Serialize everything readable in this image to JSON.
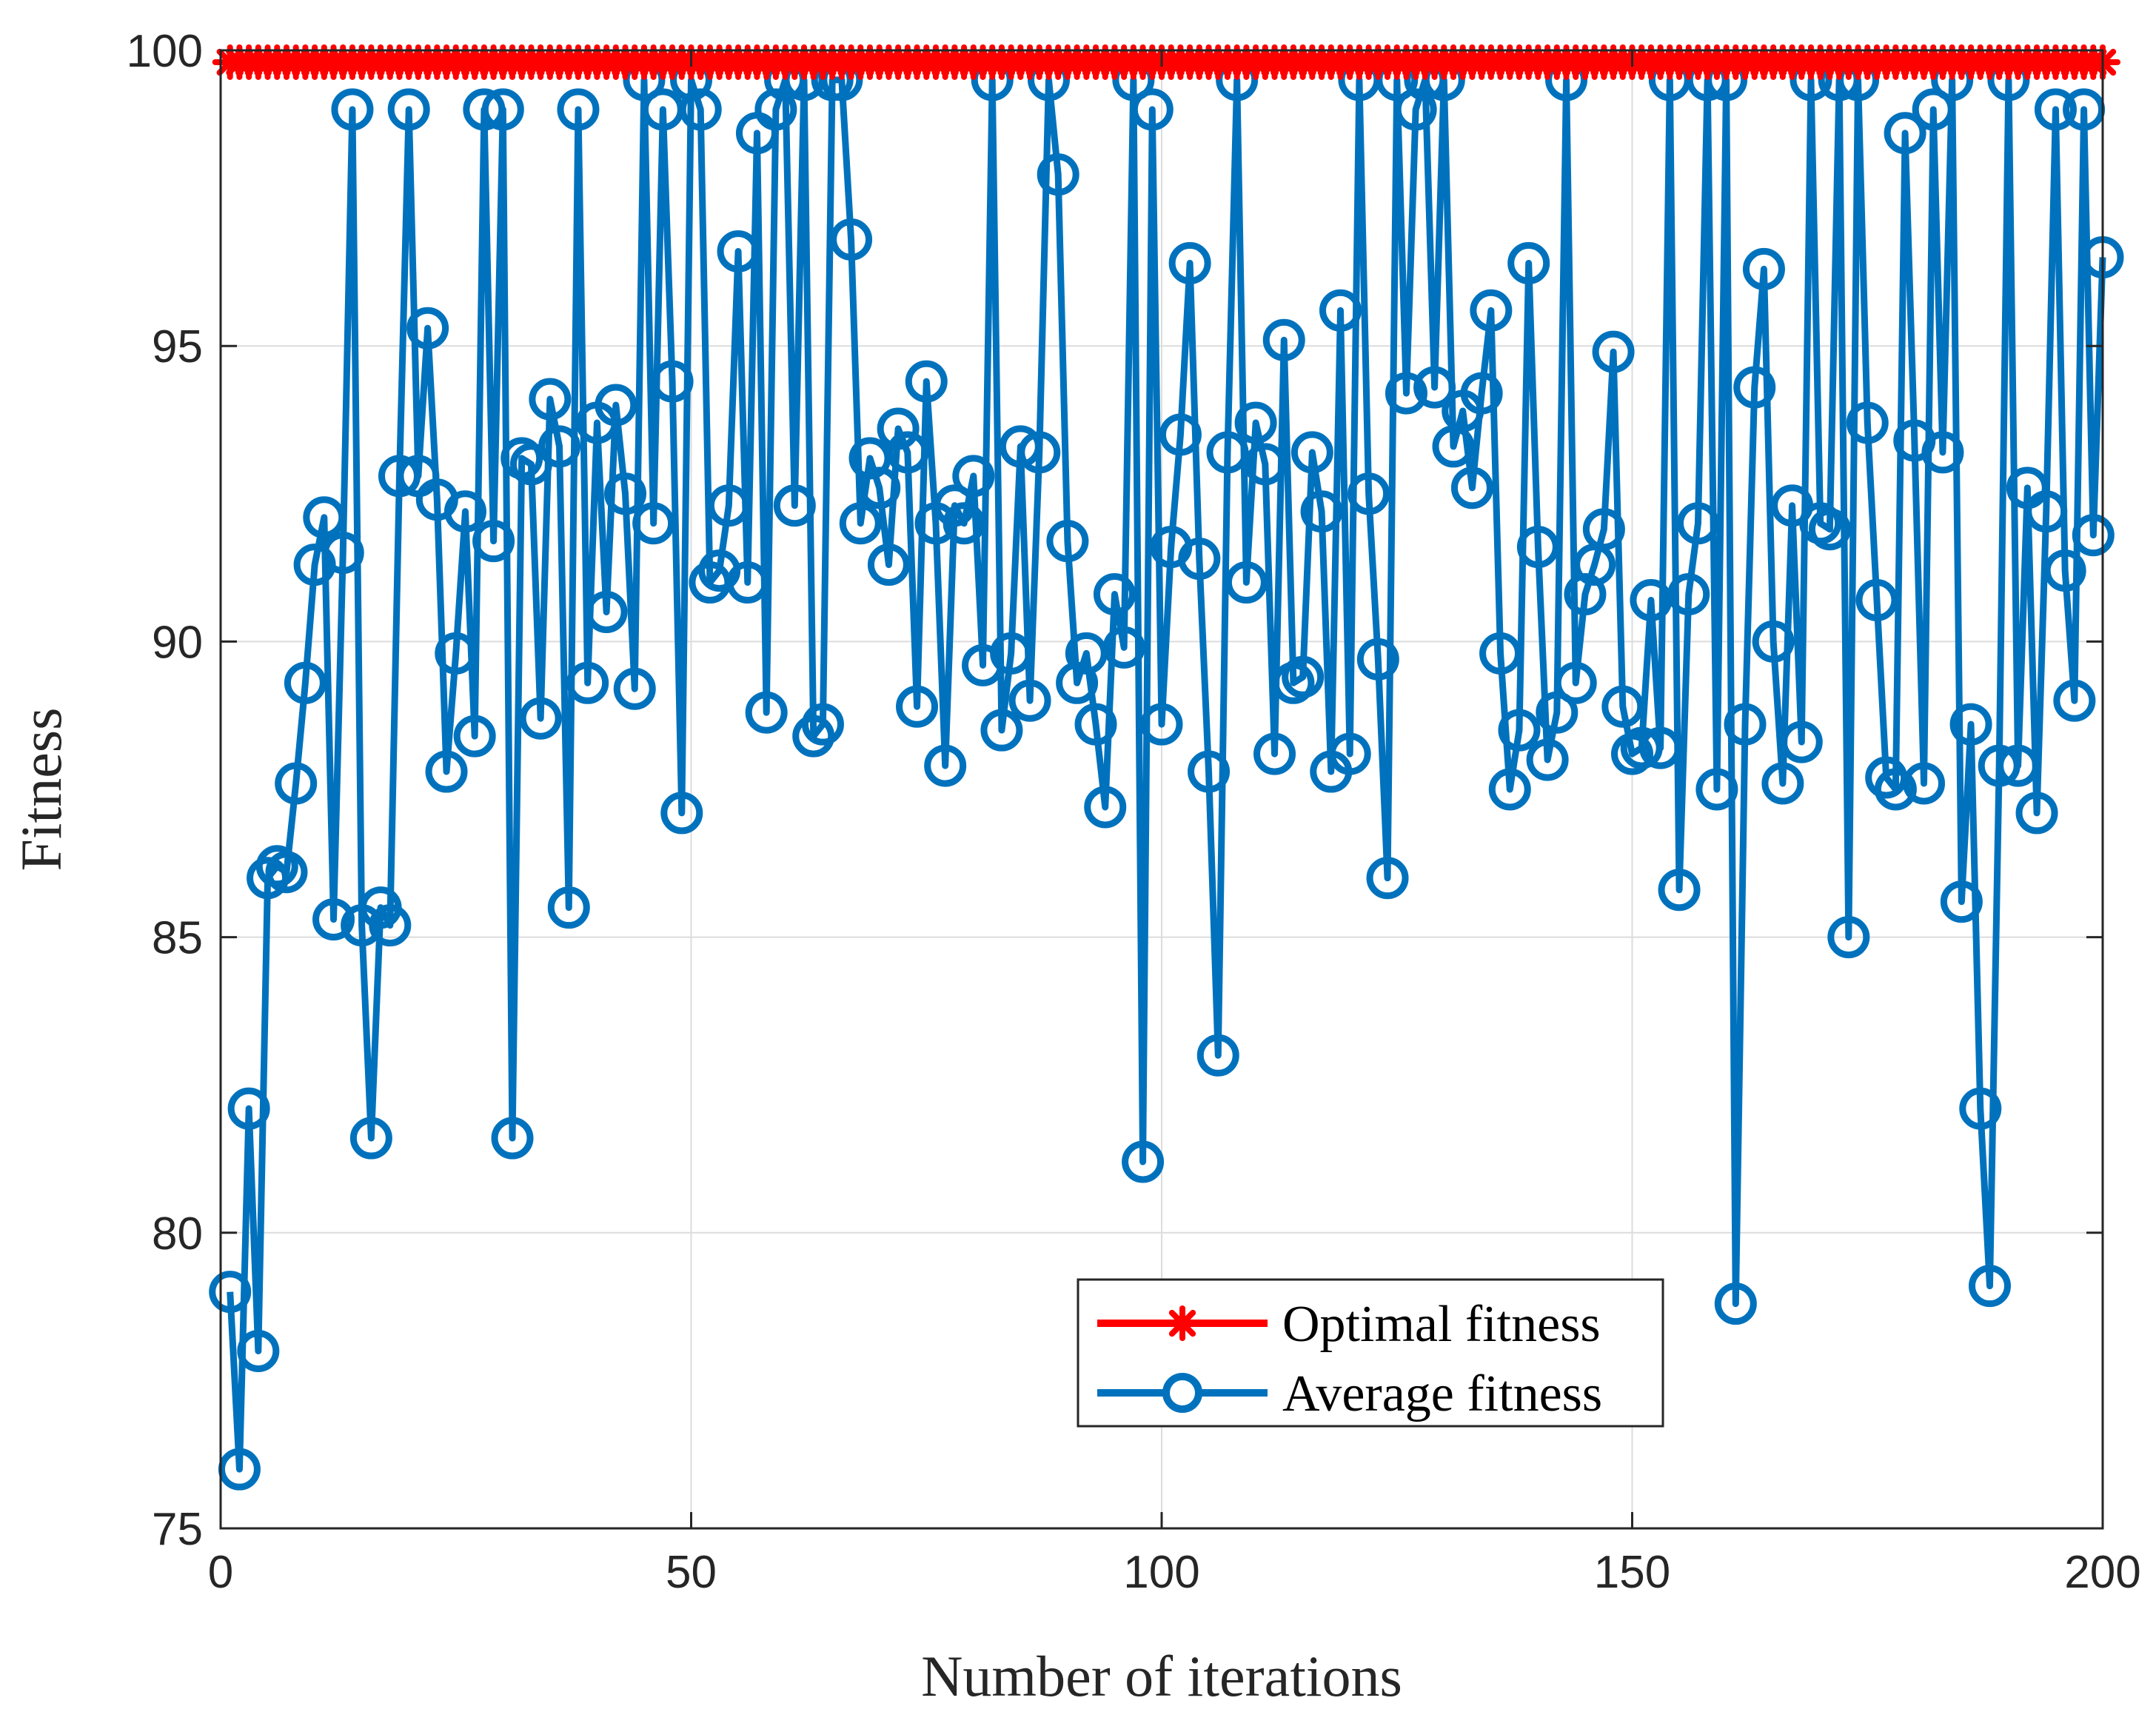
{
  "chart_data": {
    "type": "line",
    "title": "",
    "xlabel": "Number of iterations",
    "ylabel": "Fitness",
    "xlim": [
      0,
      200
    ],
    "ylim": [
      75,
      100
    ],
    "xticks": [
      0,
      50,
      100,
      150,
      200
    ],
    "yticks": [
      75,
      80,
      85,
      90,
      95,
      100
    ],
    "grid": true,
    "legend_position": "bottom-center",
    "series": [
      {
        "name": "Optimal fitness",
        "color": "#ff0000",
        "marker": "asterisk",
        "constant_value": 99.8,
        "x_range": [
          1,
          200
        ]
      },
      {
        "name": "Average fitness",
        "color": "#0072bd",
        "marker": "circle",
        "x": [
          1,
          2,
          3,
          4,
          5,
          6,
          7,
          8,
          9,
          10,
          11,
          12,
          13,
          14,
          15,
          16,
          17,
          18,
          19,
          20,
          21,
          22,
          23,
          24,
          25,
          26,
          27,
          28,
          29,
          30,
          31,
          32,
          33,
          34,
          35,
          36,
          37,
          38,
          39,
          40,
          41,
          42,
          43,
          44,
          45,
          46,
          47,
          48,
          49,
          50,
          51,
          52,
          53,
          54,
          55,
          56,
          57,
          58,
          59,
          60,
          61,
          62,
          63,
          64,
          65,
          66,
          67,
          68,
          69,
          70,
          71,
          72,
          73,
          74,
          75,
          76,
          77,
          78,
          79,
          80,
          81,
          82,
          83,
          84,
          85,
          86,
          87,
          88,
          89,
          90,
          91,
          92,
          93,
          94,
          95,
          96,
          97,
          98,
          99,
          100,
          101,
          102,
          103,
          104,
          105,
          106,
          107,
          108,
          109,
          110,
          111,
          112,
          113,
          114,
          115,
          116,
          117,
          118,
          119,
          120,
          121,
          122,
          123,
          124,
          125,
          126,
          127,
          128,
          129,
          130,
          131,
          132,
          133,
          134,
          135,
          136,
          137,
          138,
          139,
          140,
          141,
          142,
          143,
          144,
          145,
          146,
          147,
          148,
          149,
          150,
          151,
          152,
          153,
          154,
          155,
          156,
          157,
          158,
          159,
          160,
          161,
          162,
          163,
          164,
          165,
          166,
          167,
          168,
          169,
          170,
          171,
          172,
          173,
          174,
          175,
          176,
          177,
          178,
          179,
          180,
          181,
          182,
          183,
          184,
          185,
          186,
          187,
          188,
          189,
          190,
          191,
          192,
          193,
          194,
          195,
          196,
          197,
          198,
          199,
          200
        ],
        "values": [
          79.0,
          76.0,
          82.1,
          78.0,
          86.0,
          86.2,
          86.1,
          87.6,
          89.3,
          91.3,
          92.1,
          85.3,
          91.5,
          99.0,
          85.2,
          81.6,
          85.5,
          85.2,
          92.8,
          99.0,
          92.8,
          95.3,
          92.4,
          87.8,
          89.8,
          92.2,
          88.4,
          99.0,
          91.7,
          99.0,
          81.6,
          93.1,
          93.0,
          88.7,
          94.1,
          93.3,
          85.5,
          99.0,
          89.3,
          93.7,
          90.5,
          94.0,
          92.5,
          89.2,
          99.5,
          92.0,
          99.0,
          94.4,
          87.1,
          99.5,
          99.0,
          91.0,
          91.2,
          92.3,
          96.6,
          91.0,
          98.6,
          88.8,
          99.0,
          99.5,
          92.3,
          99.5,
          88.4,
          88.6,
          99.5,
          99.5,
          96.8,
          92.0,
          93.1,
          92.6,
          91.3,
          93.6,
          93.2,
          88.9,
          94.4,
          92.0,
          87.9,
          92.3,
          92.0,
          92.8,
          89.6,
          99.5,
          88.5,
          89.8,
          93.3,
          89.0,
          93.2,
          99.5,
          97.9,
          91.7,
          89.3,
          89.8,
          88.6,
          87.2,
          90.8,
          89.9,
          99.5,
          81.2,
          99.0,
          88.6,
          91.6,
          93.5,
          96.4,
          91.4,
          87.8,
          83.0,
          93.2,
          99.5,
          91.0,
          93.7,
          93.0,
          88.1,
          95.1,
          89.3,
          89.4,
          93.2,
          92.2,
          87.8,
          95.6,
          88.1,
          99.5,
          92.5,
          89.7,
          86.0,
          99.5,
          94.2,
          99.0,
          99.5,
          94.3,
          99.5,
          93.3,
          93.9,
          92.6,
          94.2,
          95.6,
          89.8,
          87.5,
          88.5,
          96.4,
          91.6,
          88.0,
          88.8,
          99.5,
          89.3,
          90.8,
          91.3,
          91.9,
          94.9,
          88.9,
          88.1,
          88.2,
          90.7,
          88.2,
          99.5,
          85.8,
          90.8,
          92.0,
          99.5,
          87.5,
          99.5,
          78.8,
          88.6,
          94.3,
          96.3,
          90.0,
          87.6,
          92.3,
          88.3,
          99.5,
          92.0,
          91.9,
          99.5,
          85.0,
          99.5,
          93.7,
          90.7,
          87.7,
          87.5,
          98.6,
          93.4,
          87.6,
          99.0,
          93.2,
          99.5,
          85.6,
          88.6,
          82.1,
          79.1,
          87.9,
          99.5,
          87.9,
          92.6,
          87.1,
          92.2,
          99.0,
          91.2,
          89.0,
          99.0,
          91.8,
          96.5
        ]
      }
    ]
  },
  "legend": {
    "entries": [
      "Optimal fitness",
      "Average fitness"
    ]
  }
}
